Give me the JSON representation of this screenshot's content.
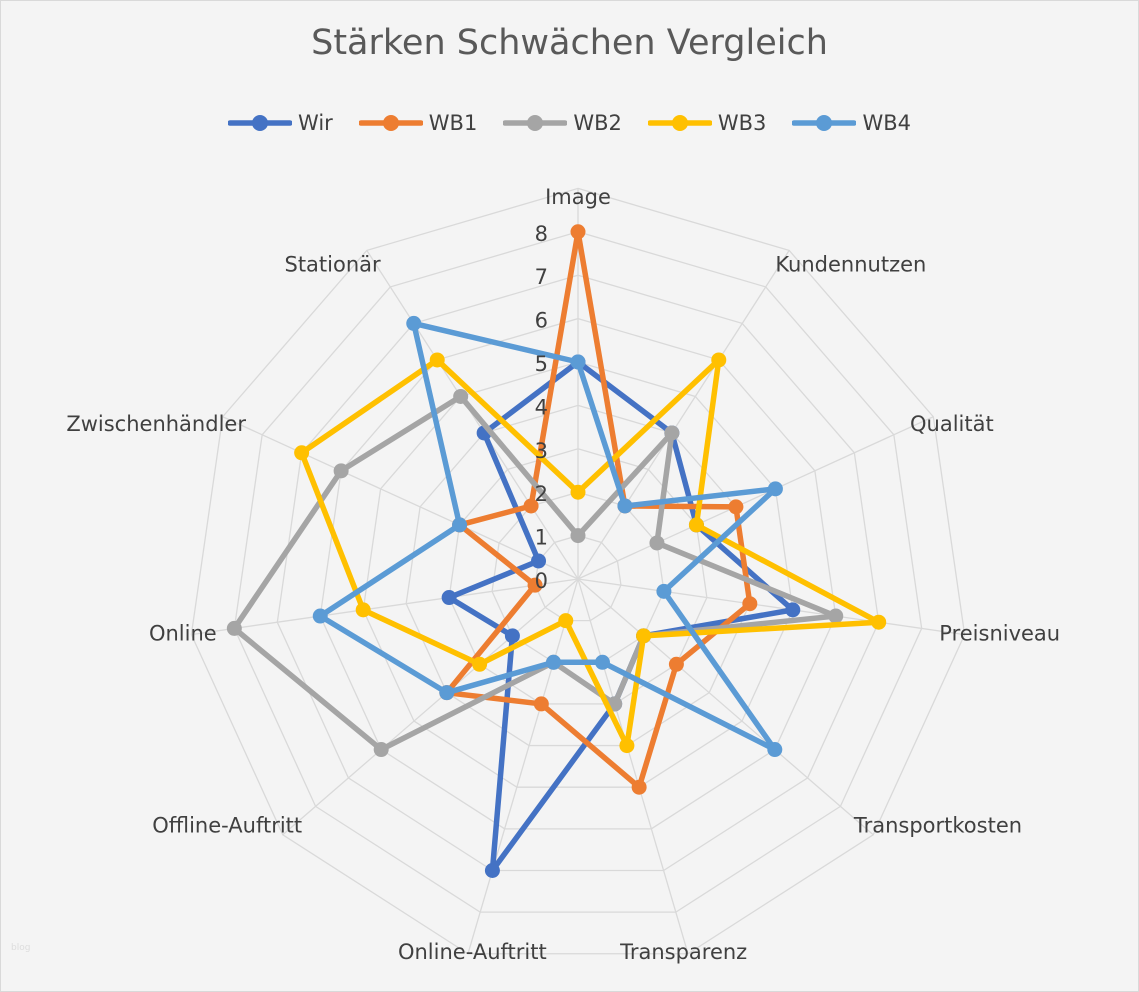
{
  "chart_data": {
    "type": "radar",
    "title": "Stärken Schwächen Vergleich",
    "categories": [
      "Image",
      "Kundennutzen",
      "Qualität",
      "Preisniveau",
      "Transportkosten",
      "Transparenz",
      "Online-Auftritt",
      "Offline-Auftritt",
      "Online",
      "Zwischenhändler",
      "Stationär"
    ],
    "rlim": [
      0,
      9
    ],
    "tick_labels": [
      "0",
      "1",
      "2",
      "3",
      "4",
      "5",
      "6",
      "7",
      "8"
    ],
    "grid": true,
    "legend": "top",
    "series": [
      {
        "name": "Wir",
        "color": "#4472C4",
        "values": [
          5,
          4,
          3,
          5,
          2,
          3,
          7,
          2,
          3,
          1,
          4
        ]
      },
      {
        "name": "WB1",
        "color": "#ED7D31",
        "values": [
          8,
          2,
          4,
          4,
          3,
          5,
          3,
          4,
          1,
          3,
          2
        ]
      },
      {
        "name": "WB2",
        "color": "#A5A5A5",
        "values": [
          1,
          4,
          2,
          6,
          2,
          3,
          2,
          6,
          8,
          6,
          5
        ]
      },
      {
        "name": "WB3",
        "color": "#FFC000",
        "values": [
          2,
          6,
          3,
          7,
          2,
          4,
          1,
          3,
          5,
          7,
          6
        ]
      },
      {
        "name": "WB4",
        "color": "#5B9BD5",
        "values": [
          5,
          2,
          5,
          2,
          6,
          2,
          2,
          4,
          6,
          3,
          7
        ]
      }
    ]
  },
  "watermark": "blog"
}
